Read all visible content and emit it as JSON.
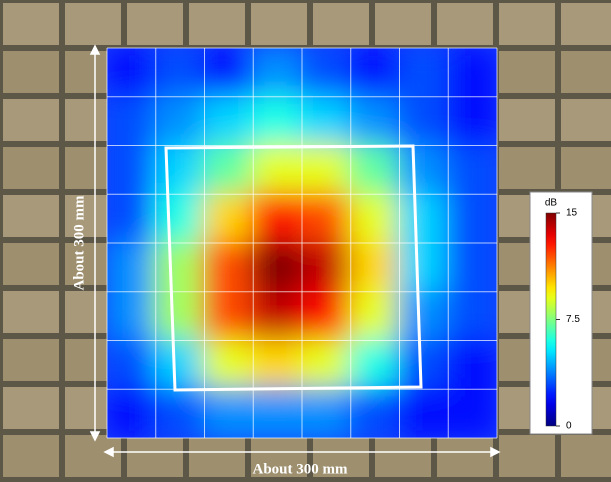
{
  "chart_data": {
    "type": "heatmap",
    "xlabel": "About 300 mm",
    "ylabel": "About 300 mm",
    "z": [
      [
        2,
        3,
        2,
        4,
        3,
        2,
        3,
        2
      ],
      [
        3,
        4,
        5,
        6,
        5,
        4,
        3,
        2
      ],
      [
        3,
        5,
        7,
        9,
        9,
        7,
        4,
        3
      ],
      [
        3,
        6,
        10,
        13,
        12,
        9,
        5,
        3
      ],
      [
        4,
        8,
        12,
        15,
        14,
        10,
        5,
        3
      ],
      [
        4,
        8,
        12,
        14,
        13,
        9,
        4,
        3
      ],
      [
        3,
        5,
        9,
        10,
        9,
        6,
        3,
        2
      ],
      [
        2,
        3,
        4,
        4,
        4,
        3,
        2,
        2
      ]
    ],
    "colorbar_label": "dB",
    "clim": [
      0,
      15
    ],
    "cticks": [
      0,
      7.5,
      15
    ],
    "colormap": "jet"
  }
}
